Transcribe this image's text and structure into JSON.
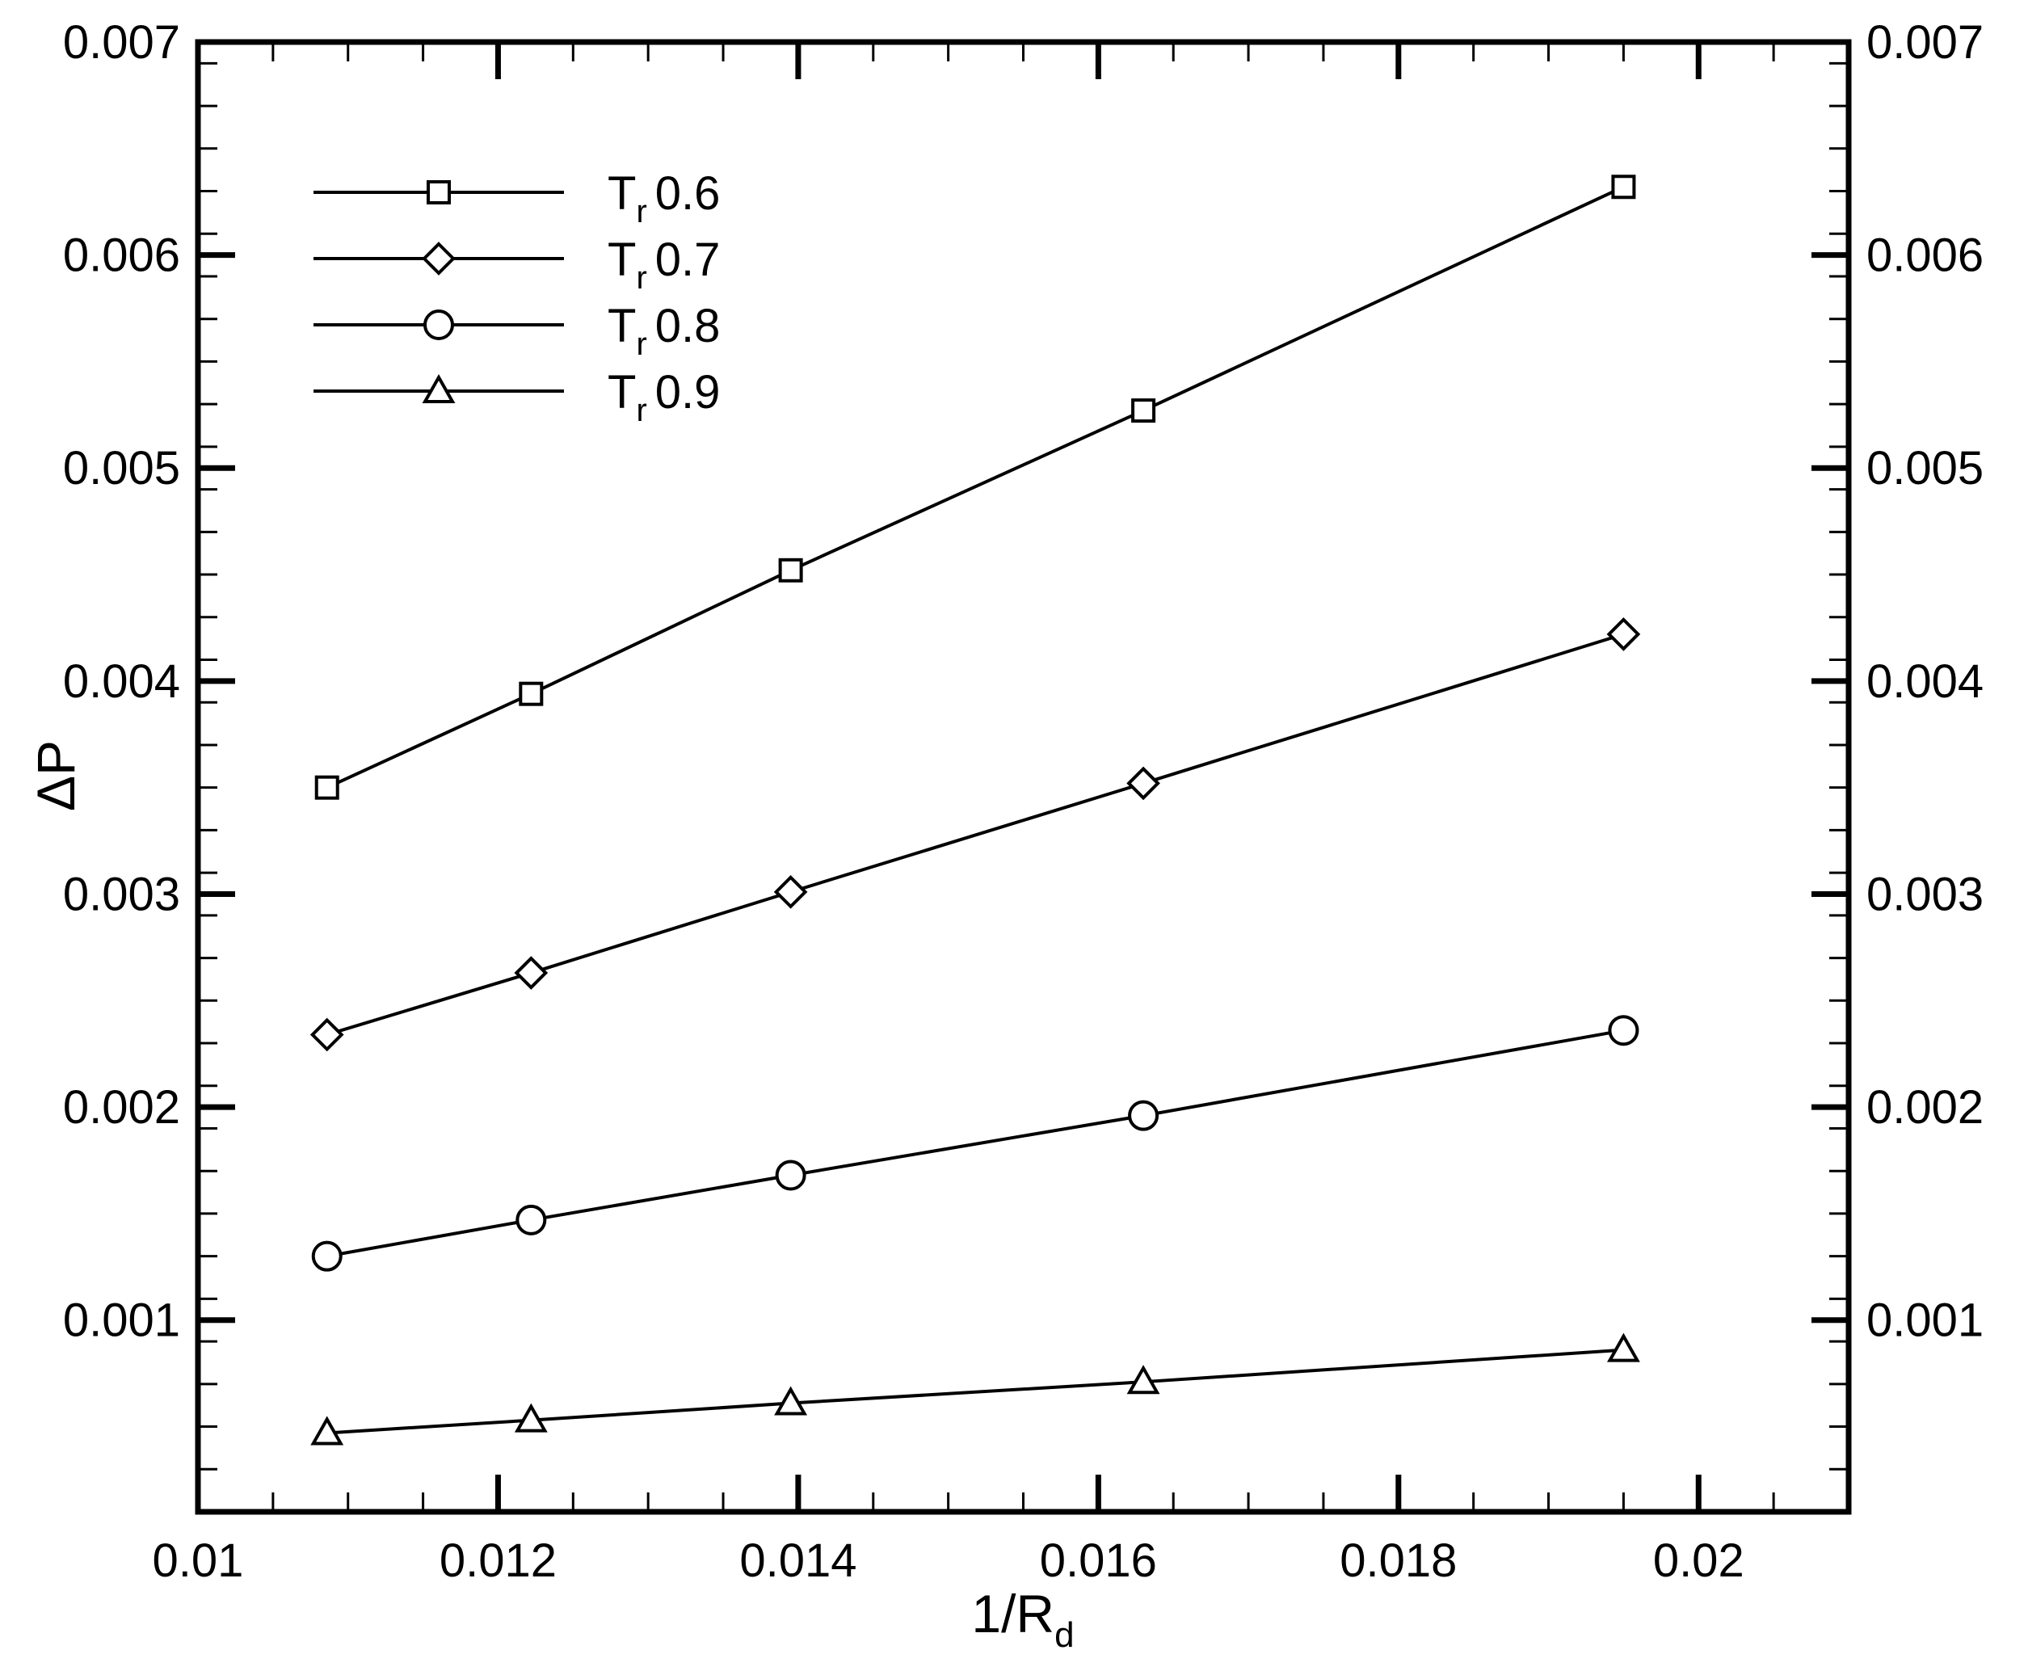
{
  "chart_data": {
    "type": "line",
    "xlabel": {
      "main": "1/R",
      "sub": "d"
    },
    "ylabel": "ΔP",
    "xlim": [
      0.01,
      0.021
    ],
    "ylim": [
      0.0001,
      0.007
    ],
    "x_ticks": [
      {
        "value": 0.01,
        "label": "0.01"
      },
      {
        "value": 0.012,
        "label": "0.012"
      },
      {
        "value": 0.014,
        "label": "0.014"
      },
      {
        "value": 0.016,
        "label": "0.016"
      },
      {
        "value": 0.018,
        "label": "0.018"
      },
      {
        "value": 0.02,
        "label": "0.02"
      }
    ],
    "y_ticks": [
      {
        "value": 0.001,
        "label": "0.001"
      },
      {
        "value": 0.002,
        "label": "0.002"
      },
      {
        "value": 0.003,
        "label": "0.003"
      },
      {
        "value": 0.004,
        "label": "0.004"
      },
      {
        "value": 0.005,
        "label": "0.005"
      },
      {
        "value": 0.006,
        "label": "0.006"
      },
      {
        "value": 0.007,
        "label": "0.007"
      }
    ],
    "x_minor_step": 0.0005,
    "y_minor_step": 0.0002,
    "right_axis_labels": true,
    "grid": false,
    "legend_position": "top-left",
    "x": [
      0.01086,
      0.01222,
      0.01395,
      0.0163,
      0.0195
    ],
    "series": [
      {
        "name": {
          "main": "T",
          "sub": "r",
          "value": "0.6"
        },
        "marker": "square",
        "values": [
          0.0035,
          0.00394,
          0.00452,
          0.00527,
          0.00632
        ]
      },
      {
        "name": {
          "main": "T",
          "sub": "r",
          "value": "0.7"
        },
        "marker": "diamond",
        "values": [
          0.00234,
          0.00263,
          0.00301,
          0.00352,
          0.00422
        ]
      },
      {
        "name": {
          "main": "T",
          "sub": "r",
          "value": "0.8"
        },
        "marker": "circle",
        "values": [
          0.0013,
          0.00147,
          0.00168,
          0.00196,
          0.00236
        ]
      },
      {
        "name": {
          "main": "T",
          "sub": "r",
          "value": "0.9"
        },
        "marker": "triangle",
        "values": [
          0.00047,
          0.00053,
          0.00061,
          0.00071,
          0.00086
        ]
      }
    ],
    "colors": {
      "line": "#000000",
      "background": "#ffffff"
    }
  }
}
